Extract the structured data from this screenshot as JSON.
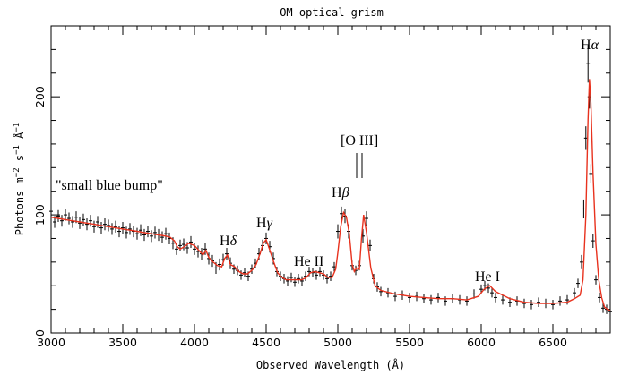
{
  "chart_data": {
    "type": "line",
    "title": "OM optical grism",
    "xlabel": "Observed Wavelength (Å)",
    "ylabel_parts": [
      "Photons m",
      "−2",
      " s",
      "−1",
      " Å",
      "−1"
    ],
    "xlim": [
      3000,
      6900
    ],
    "ylim": [
      0,
      260
    ],
    "xticks": [
      3000,
      3500,
      4000,
      4500,
      5000,
      5500,
      6000,
      6500
    ],
    "yticks": [
      0,
      100,
      200
    ],
    "model_color": "#e8321e",
    "data_color": "#000000",
    "series": [
      {
        "role": "model",
        "x": [
          3000,
          3050,
          3100,
          3150,
          3200,
          3250,
          3300,
          3350,
          3400,
          3450,
          3500,
          3550,
          3600,
          3650,
          3700,
          3750,
          3800,
          3830,
          3860,
          3880,
          3900,
          3930,
          3960,
          3980,
          4000,
          4030,
          4060,
          4080,
          4100,
          4130,
          4160,
          4190,
          4210,
          4230,
          4250,
          4280,
          4310,
          4340,
          4370,
          4400,
          4430,
          4460,
          4480,
          4500,
          4520,
          4550,
          4580,
          4610,
          4640,
          4670,
          4700,
          4750,
          4780,
          4810,
          4840,
          4870,
          4900,
          4930,
          4960,
          4985,
          5000,
          5020,
          5040,
          5060,
          5080,
          5100,
          5115,
          5130,
          5150,
          5165,
          5180,
          5200,
          5230,
          5260,
          5300,
          5400,
          5500,
          5600,
          5700,
          5800,
          5900,
          5980,
          6020,
          6060,
          6100,
          6150,
          6200,
          6300,
          6400,
          6500,
          6600,
          6650,
          6690,
          6710,
          6730,
          6745,
          6755,
          6765,
          6780,
          6800,
          6820,
          6840,
          6860,
          6880,
          6900
        ],
        "y": [
          98,
          97,
          96,
          95,
          94,
          93,
          92,
          91,
          90,
          89,
          88,
          87,
          86,
          85,
          84,
          83,
          82,
          81,
          78,
          73,
          71,
          73,
          76,
          75,
          74,
          70,
          66,
          70,
          64,
          60,
          57,
          56,
          63,
          66,
          58,
          56,
          52,
          50,
          50,
          53,
          58,
          68,
          76,
          79,
          72,
          61,
          51,
          47,
          45,
          45,
          45,
          45,
          47,
          51,
          52,
          51,
          50,
          47,
          47,
          54,
          68,
          90,
          102,
          98,
          84,
          58,
          52,
          55,
          54,
          80,
          100,
          85,
          55,
          40,
          36,
          33,
          31,
          30,
          29,
          29,
          28,
          31,
          37,
          40,
          35,
          32,
          29,
          26,
          25,
          25,
          26,
          29,
          32,
          45,
          100,
          180,
          215,
          195,
          135,
          75,
          45,
          30,
          22,
          20,
          19
        ]
      },
      {
        "role": "data",
        "x": [
          3000,
          3025,
          3050,
          3075,
          3100,
          3125,
          3150,
          3175,
          3200,
          3225,
          3250,
          3275,
          3300,
          3325,
          3350,
          3375,
          3400,
          3425,
          3450,
          3475,
          3500,
          3525,
          3550,
          3575,
          3600,
          3625,
          3650,
          3675,
          3700,
          3725,
          3750,
          3775,
          3800,
          3825,
          3850,
          3875,
          3900,
          3925,
          3950,
          3975,
          4000,
          4025,
          4050,
          4075,
          4100,
          4125,
          4150,
          4175,
          4200,
          4225,
          4250,
          4275,
          4300,
          4325,
          4350,
          4375,
          4400,
          4425,
          4450,
          4475,
          4500,
          4525,
          4550,
          4575,
          4600,
          4625,
          4650,
          4675,
          4700,
          4725,
          4750,
          4775,
          4800,
          4825,
          4850,
          4875,
          4900,
          4925,
          4950,
          4975,
          5000,
          5025,
          5050,
          5075,
          5100,
          5125,
          5150,
          5175,
          5200,
          5225,
          5250,
          5275,
          5300,
          5350,
          5400,
          5450,
          5500,
          5550,
          5600,
          5650,
          5700,
          5750,
          5800,
          5850,
          5900,
          5950,
          6000,
          6025,
          6050,
          6075,
          6100,
          6150,
          6200,
          6250,
          6300,
          6350,
          6400,
          6450,
          6500,
          6550,
          6600,
          6650,
          6675,
          6700,
          6715,
          6730,
          6745,
          6755,
          6765,
          6780,
          6800,
          6825,
          6850,
          6875,
          6900
        ],
        "y": [
          103,
          94,
          99,
          95,
          100,
          97,
          94,
          98,
          93,
          96,
          92,
          95,
          90,
          94,
          89,
          92,
          91,
          88,
          90,
          86,
          89,
          85,
          88,
          86,
          84,
          87,
          83,
          86,
          82,
          85,
          83,
          81,
          84,
          80,
          76,
          71,
          74,
          75,
          72,
          77,
          71,
          69,
          67,
          71,
          63,
          61,
          55,
          58,
          62,
          67,
          59,
          54,
          53,
          49,
          51,
          48,
          54,
          59,
          67,
          74,
          80,
          73,
          63,
          52,
          48,
          46,
          44,
          47,
          43,
          46,
          44,
          48,
          52,
          51,
          49,
          52,
          49,
          46,
          48,
          56,
          86,
          101,
          99,
          86,
          57,
          53,
          57,
          82,
          97,
          74,
          46,
          39,
          35,
          34,
          31,
          32,
          30,
          31,
          29,
          28,
          30,
          27,
          29,
          28,
          27,
          33,
          37,
          40,
          38,
          34,
          30,
          28,
          26,
          27,
          25,
          24,
          26,
          25,
          24,
          27,
          28,
          34,
          42,
          60,
          105,
          165,
          228,
          200,
          135,
          78,
          45,
          30,
          21,
          20,
          18
        ],
        "err": [
          6,
          5,
          5,
          5,
          5,
          5,
          5,
          5,
          5,
          5,
          5,
          5,
          5,
          5,
          5,
          5,
          5,
          5,
          5,
          5,
          5,
          5,
          5,
          5,
          5,
          5,
          5,
          5,
          5,
          5,
          5,
          5,
          5,
          5,
          5,
          5,
          5,
          5,
          5,
          5,
          5,
          5,
          5,
          5,
          5,
          5,
          5,
          5,
          5,
          5,
          5,
          4,
          4,
          4,
          4,
          4,
          4,
          4,
          5,
          5,
          5,
          5,
          5,
          4,
          4,
          4,
          4,
          4,
          4,
          4,
          4,
          4,
          4,
          4,
          4,
          4,
          4,
          4,
          4,
          4,
          6,
          6,
          6,
          6,
          4,
          4,
          4,
          6,
          6,
          5,
          4,
          4,
          4,
          4,
          4,
          4,
          4,
          4,
          4,
          4,
          4,
          4,
          4,
          4,
          4,
          4,
          4,
          4,
          4,
          4,
          4,
          4,
          4,
          4,
          4,
          4,
          4,
          4,
          4,
          4,
          4,
          4,
          4,
          6,
          8,
          10,
          16,
          10,
          8,
          6,
          4,
          4,
          4,
          4,
          4
        ]
      }
    ],
    "annotations": [
      {
        "id": "small-blue-bump",
        "text": "\"small blue bump\""
      },
      {
        "id": "h-delta",
        "text": "H",
        "greek": "δ"
      },
      {
        "id": "h-gamma",
        "text": "H",
        "greek": "γ"
      },
      {
        "id": "he-ii",
        "text": "He II"
      },
      {
        "id": "h-beta",
        "text": "H",
        "greek": "β"
      },
      {
        "id": "o-iii",
        "text": "[O III]"
      },
      {
        "id": "he-i",
        "text": "He I"
      },
      {
        "id": "h-alpha",
        "text": "H",
        "greek": "α"
      }
    ]
  }
}
